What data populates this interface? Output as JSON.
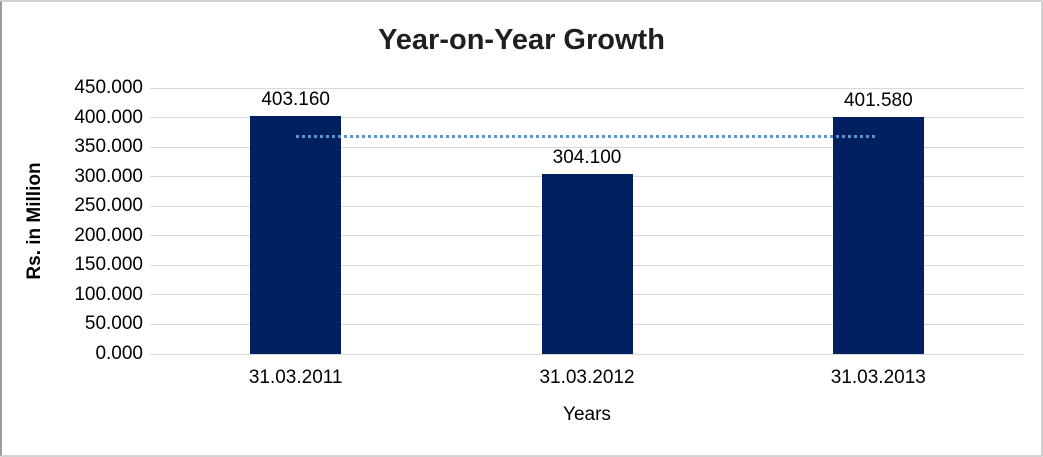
{
  "chart_data": {
    "type": "bar",
    "title": "Year-on-Year Growth",
    "xlabel": "Years",
    "ylabel": "Rs. in Million",
    "categories": [
      "31.03.2011",
      "31.03.2012",
      "31.03.2013"
    ],
    "values": [
      403.16,
      304.1,
      401.58
    ],
    "data_labels": [
      "403.160",
      "304.100",
      "401.580"
    ],
    "ylim": [
      0,
      450
    ],
    "yticks": [
      0,
      50,
      100,
      150,
      200,
      250,
      300,
      350,
      400,
      450
    ],
    "ytick_labels": [
      "0.000",
      "50.000",
      "100.000",
      "150.000",
      "200.000",
      "250.000",
      "300.000",
      "350.000",
      "400.000",
      "450.000"
    ],
    "grid": true,
    "legend": false,
    "bar_color": "#002060",
    "gridline_color": "#d9d9d9",
    "axis_text_color": "#000000",
    "title_color": "#1f1f1f",
    "trendline": {
      "type": "linear",
      "style": "dotted",
      "color": "#5e93ce",
      "value": 369.613,
      "spans_categories": [
        0,
        2
      ]
    }
  }
}
